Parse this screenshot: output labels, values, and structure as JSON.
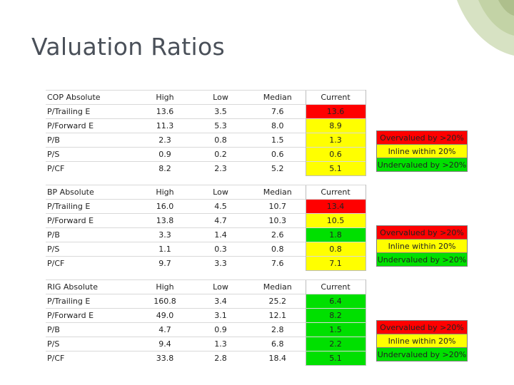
{
  "title": "Valuation Ratios",
  "colors": {
    "red": "#ff0000",
    "yellow": "#ffff00",
    "green": "#00e000",
    "header_gray": "#e6e6e6",
    "deco_green": "#cfdcb7"
  },
  "tables": [
    {
      "name": "COP Absolute",
      "headers": [
        "High",
        "Low",
        "Median",
        "Current"
      ],
      "rows": [
        {
          "label": "P/Trailing E",
          "high": "13.6",
          "low": "3.5",
          "median": "7.6",
          "current": "13.6",
          "status": "red"
        },
        {
          "label": "P/Forward E",
          "high": "11.3",
          "low": "5.3",
          "median": "8.0",
          "current": "8.9",
          "status": "yellow"
        },
        {
          "label": "P/B",
          "high": "2.3",
          "low": "0.8",
          "median": "1.5",
          "current": "1.3",
          "status": "yellow"
        },
        {
          "label": "P/S",
          "high": "0.9",
          "low": "0.2",
          "median": "0.6",
          "current": "0.6",
          "status": "yellow"
        },
        {
          "label": "P/CF",
          "high": "8.2",
          "low": "2.3",
          "median": "5.2",
          "current": "5.1",
          "status": "yellow"
        }
      ],
      "legend": [
        "Overvalued by >20%",
        "Inline within 20%",
        "Undervalued by >20%"
      ]
    },
    {
      "name": "BP Absolute",
      "headers": [
        "High",
        "Low",
        "Median",
        "Current"
      ],
      "rows": [
        {
          "label": "P/Trailing E",
          "high": "16.0",
          "low": "4.5",
          "median": "10.7",
          "current": "13.4",
          "status": "red"
        },
        {
          "label": "P/Forward E",
          "high": "13.8",
          "low": "4.7",
          "median": "10.3",
          "current": "10.5",
          "status": "yellow"
        },
        {
          "label": "P/B",
          "high": "3.3",
          "low": "1.4",
          "median": "2.6",
          "current": "1.8",
          "status": "green"
        },
        {
          "label": "P/S",
          "high": "1.1",
          "low": "0.3",
          "median": "0.8",
          "current": "0.8",
          "status": "yellow"
        },
        {
          "label": "P/CF",
          "high": "9.7",
          "low": "3.3",
          "median": "7.6",
          "current": "7.1",
          "status": "yellow"
        }
      ],
      "legend": [
        "Overvalued by >20%",
        "Inline within 20%",
        "Undervalued by >20%"
      ]
    },
    {
      "name": "RIG Absolute",
      "headers": [
        "High",
        "Low",
        "Median",
        "Current"
      ],
      "rows": [
        {
          "label": "P/Trailing E",
          "high": "160.8",
          "low": "3.4",
          "median": "25.2",
          "current": "6.4",
          "status": "green"
        },
        {
          "label": "P/Forward E",
          "high": "49.0",
          "low": "3.1",
          "median": "12.1",
          "current": "8.2",
          "status": "green"
        },
        {
          "label": "P/B",
          "high": "4.7",
          "low": "0.9",
          "median": "2.8",
          "current": "1.5",
          "status": "green"
        },
        {
          "label": "P/S",
          "high": "9.4",
          "low": "1.3",
          "median": "6.8",
          "current": "2.2",
          "status": "green"
        },
        {
          "label": "P/CF",
          "high": "33.8",
          "low": "2.8",
          "median": "18.4",
          "current": "5.1",
          "status": "green"
        }
      ],
      "legend": [
        "Overvalued by >20%",
        "Inline within 20%",
        "Undervalued by >20%"
      ]
    }
  ]
}
